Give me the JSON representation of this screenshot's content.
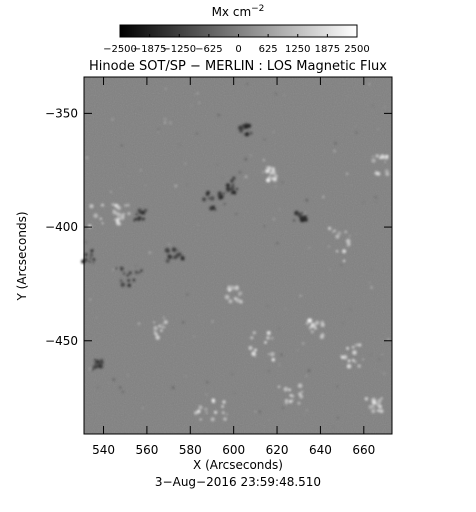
{
  "colorbar": {
    "unit_base": "Mx cm",
    "unit_exp": "−2",
    "tick_labels": [
      "−2500",
      "−1875",
      "−1250",
      "−625",
      "0",
      "625",
      "1250",
      "1875",
      "2500"
    ],
    "colormap": "grayscale",
    "range": [
      -2500,
      2500
    ]
  },
  "plot": {
    "title": "Hinode SOT/SP − MERLIN : LOS Magnetic Flux",
    "xlabel": "X (Arcseconds)",
    "ylabel": "Y (Arcseconds)",
    "xticks": [
      "540",
      "560",
      "580",
      "600",
      "620",
      "640",
      "660"
    ],
    "yticks": [
      "−350",
      "−400",
      "−450"
    ],
    "xlim": [
      531,
      673
    ],
    "ylim": [
      -491,
      -334
    ],
    "background_gray": "#808080",
    "timestamp": "3−Aug−2016 23:59:48.510"
  }
}
